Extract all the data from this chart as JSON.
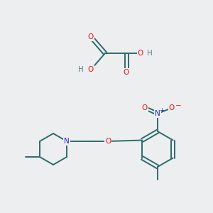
{
  "background_color": "#eceef0",
  "bond_color": "#2d6b6b",
  "atom_colors": {
    "O": "#ee1111",
    "N": "#2222cc",
    "H": "#5a8080",
    "C": "#2d6b6b"
  },
  "figsize": [
    3.0,
    3.0
  ],
  "dpi": 100,
  "lw": 1.4,
  "fs": 7.5
}
